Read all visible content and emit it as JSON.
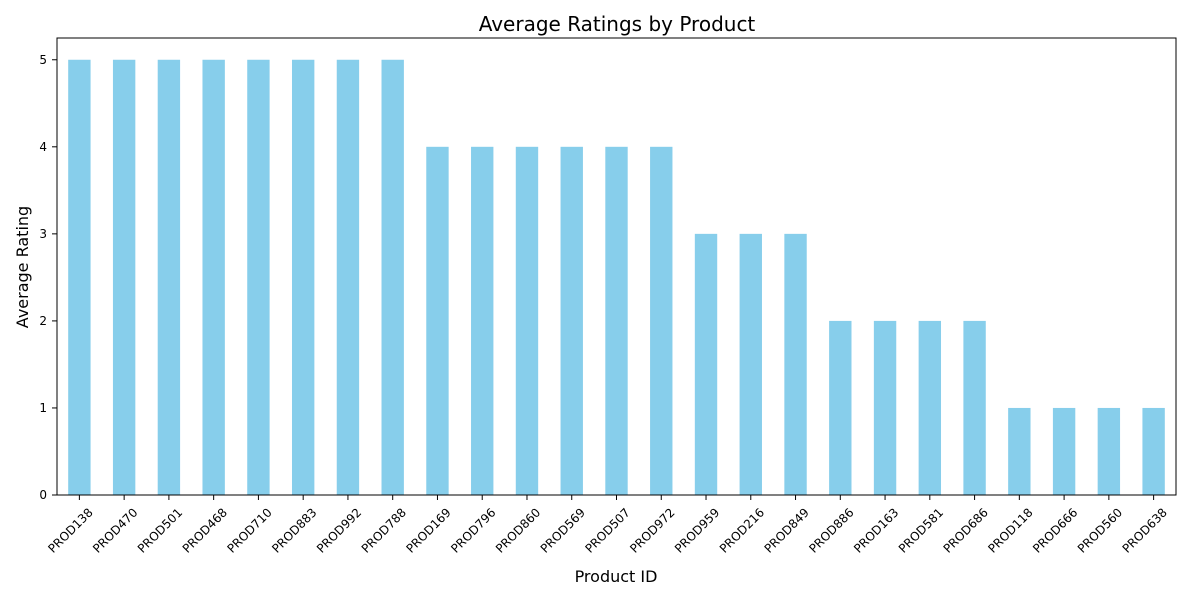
{
  "chart_data": {
    "type": "bar",
    "title": "Average Ratings by Product",
    "xlabel": "Product ID",
    "ylabel": "Average Rating",
    "categories": [
      "PROD138",
      "PROD470",
      "PROD501",
      "PROD468",
      "PROD710",
      "PROD883",
      "PROD992",
      "PROD788",
      "PROD169",
      "PROD796",
      "PROD860",
      "PROD569",
      "PROD507",
      "PROD972",
      "PROD959",
      "PROD216",
      "PROD849",
      "PROD886",
      "PROD163",
      "PROD581",
      "PROD686",
      "PROD118",
      "PROD666",
      "PROD560",
      "PROD638"
    ],
    "values": [
      5,
      5,
      5,
      5,
      5,
      5,
      5,
      5,
      4,
      4,
      4,
      4,
      4,
      4,
      3,
      3,
      3,
      2,
      2,
      2,
      2,
      1,
      1,
      1,
      1
    ],
    "y_ticks": [
      0,
      1,
      2,
      3,
      4,
      5
    ],
    "ylim": [
      0,
      5.25
    ],
    "grid": false,
    "legend": "none",
    "bar_color": "#87CEEB",
    "x_tick_rotation_deg": 45
  }
}
